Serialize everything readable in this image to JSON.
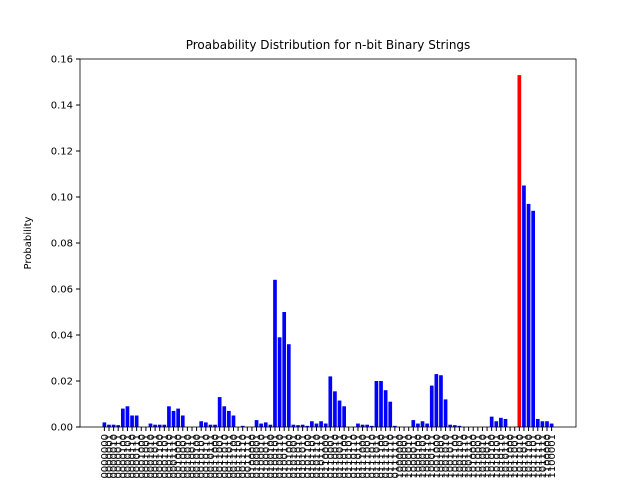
{
  "chart_data": {
    "type": "bar",
    "title": "Proabability Distribution for n-bit Binary Strings",
    "ylabel": "Probability",
    "categories": [
      "0000000",
      "0000001",
      "0000010",
      "0000011",
      "0000100",
      "0000101",
      "0000110",
      "0000111",
      "0001000",
      "0001001",
      "0001010",
      "0001011",
      "0001100",
      "0001101",
      "0001110",
      "0001111",
      "0010000",
      "0010001",
      "0010010",
      "0010011",
      "0010100",
      "0010101",
      "0010110",
      "0010111",
      "0011000",
      "0011001",
      "0011010",
      "0011011",
      "0011100",
      "0011101",
      "0011110",
      "0011111",
      "0100000",
      "0100001",
      "0100010",
      "0100011",
      "0100100",
      "0100101",
      "0100110",
      "0100111",
      "0101000",
      "0101001",
      "0101010",
      "0101011",
      "0101100",
      "0101101",
      "0101110",
      "0101111",
      "0110000",
      "0110001",
      "0110010",
      "0110011",
      "0110100",
      "0110101",
      "0110110",
      "0110111",
      "0111000",
      "0111001",
      "0111010",
      "0111011",
      "0111100",
      "0111101",
      "0111110",
      "0111111",
      "1000000",
      "1000001",
      "1000010",
      "1000011",
      "1000100",
      "1000101",
      "1000110",
      "1000111",
      "1001000",
      "1001001",
      "1001010",
      "1001011",
      "1001100",
      "1001101",
      "1001110",
      "1001111",
      "1010000",
      "1010001",
      "1010010",
      "1010011",
      "1010100",
      "1010101",
      "1010110",
      "1010111",
      "1011000",
      "1011001",
      "1011010",
      "1011011",
      "1011100",
      "1011101",
      "1011110",
      "1011111",
      "1100000",
      "1100001"
    ],
    "values": [
      0.002,
      0.001,
      0.001,
      0.0008,
      0.008,
      0.009,
      0.005,
      0.005,
      0,
      0,
      0.0015,
      0.001,
      0.001,
      0.001,
      0.009,
      0.007,
      0.008,
      0.005,
      0,
      0,
      0,
      0.0025,
      0.002,
      0.001,
      0.001,
      0.013,
      0.009,
      0.007,
      0.005,
      0,
      0.0005,
      0,
      0,
      0.003,
      0.0015,
      0.002,
      0.001,
      0.064,
      0.039,
      0.05,
      0.036,
      0.001,
      0.0008,
      0.001,
      0.0005,
      0.0025,
      0.0015,
      0.0025,
      0.0015,
      0.022,
      0.0155,
      0.0115,
      0.009,
      0,
      0,
      0.0015,
      0.001,
      0.001,
      0.0005,
      0.02,
      0.02,
      0.016,
      0.011,
      0.0005,
      0,
      0,
      0,
      0.003,
      0.0015,
      0.0025,
      0.0015,
      0.018,
      0.023,
      0.0225,
      0.012,
      0.001,
      0.0008,
      0.0005,
      0,
      0,
      0,
      0,
      0,
      0,
      0.0045,
      0.0025,
      0.004,
      0.0035,
      0,
      0,
      0.153,
      0.105,
      0.097,
      0.094,
      0.0035,
      0.0025,
      0.0025,
      0.0015
    ],
    "color": "#0000ff",
    "highlight": {
      "index": 90,
      "color": "#ff0000"
    },
    "ylim": [
      0,
      0.16
    ],
    "yticks": [
      {
        "value": 0,
        "label": "0.00"
      },
      {
        "value": 0.02,
        "label": "0.02"
      },
      {
        "value": 0.04,
        "label": "0.04"
      },
      {
        "value": 0.06,
        "label": "0.06"
      },
      {
        "value": 0.08,
        "label": "0.08"
      },
      {
        "value": 0.1,
        "label": "0.10"
      },
      {
        "value": 0.12,
        "label": "0.12"
      },
      {
        "value": 0.14,
        "label": "0.14"
      },
      {
        "value": 0.16,
        "label": "0.16"
      }
    ]
  }
}
